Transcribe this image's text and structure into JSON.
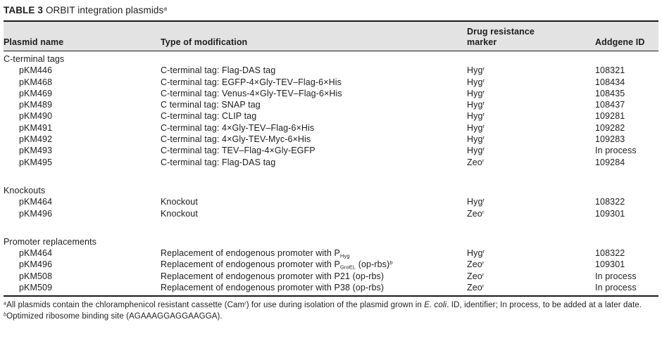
{
  "colors": {
    "header_bg": "#e3e3e3",
    "text": "#1d1d1d",
    "rule": "#1a1a1a"
  },
  "table": {
    "title_label": "TABLE 3",
    "title_text": "ORBIT integration plasmids",
    "title_note_ref": "a",
    "columns": [
      "Plasmid name",
      "Type of modification",
      "Drug resistance marker",
      "Addgene ID"
    ],
    "sections": [
      {
        "name": "C-terminal tags",
        "rows": [
          {
            "plasmid": "pKM446",
            "modification": [
              {
                "t": "C-terminal tag: Flag-DAS tag"
              }
            ],
            "marker": [
              {
                "t": "Hyg"
              },
              {
                "t": "r",
                "style": "sup"
              }
            ],
            "addgene": "108321"
          },
          {
            "plasmid": "pKM468",
            "modification": [
              {
                "t": "C-terminal tag: EGFP-4×Gly-TEV–Flag-6×His"
              }
            ],
            "marker": [
              {
                "t": "Hyg"
              },
              {
                "t": "r",
                "style": "sup"
              }
            ],
            "addgene": "108434"
          },
          {
            "plasmid": "pKM469",
            "modification": [
              {
                "t": "C-terminal tag: Venus-4×Gly-TEV–Flag-6×His"
              }
            ],
            "marker": [
              {
                "t": "Hyg"
              },
              {
                "t": "r",
                "style": "sup"
              }
            ],
            "addgene": "108435"
          },
          {
            "plasmid": "pKM489",
            "modification": [
              {
                "t": "C terminal tag: SNAP tag"
              }
            ],
            "marker": [
              {
                "t": "Hyg"
              },
              {
                "t": "r",
                "style": "sup"
              }
            ],
            "addgene": "108437"
          },
          {
            "plasmid": "pKM490",
            "modification": [
              {
                "t": "C-terminal tag: CLIP tag"
              }
            ],
            "marker": [
              {
                "t": "Hyg"
              },
              {
                "t": "r",
                "style": "sup"
              }
            ],
            "addgene": "109281"
          },
          {
            "plasmid": "pKM491",
            "modification": [
              {
                "t": "C-terminal tag: 4×Gly-TEV–Flag-6×His"
              }
            ],
            "marker": [
              {
                "t": "Hyg"
              },
              {
                "t": "r",
                "style": "sup"
              }
            ],
            "addgene": "109282"
          },
          {
            "plasmid": "pKM492",
            "modification": [
              {
                "t": "C-terminal tag: 4×Gly-TEV-Myc-6×His"
              }
            ],
            "marker": [
              {
                "t": "Hyg"
              },
              {
                "t": "r",
                "style": "sup"
              }
            ],
            "addgene": "109283"
          },
          {
            "plasmid": "pKM493",
            "modification": [
              {
                "t": "C-terminal tag: TEV–Flag-4×Gly-EGFP"
              }
            ],
            "marker": [
              {
                "t": "Hyg"
              },
              {
                "t": "r",
                "style": "sup"
              }
            ],
            "addgene": "In process"
          },
          {
            "plasmid": "pKM495",
            "modification": [
              {
                "t": "C-terminal tag: Flag-DAS tag"
              }
            ],
            "marker": [
              {
                "t": "Zeo"
              },
              {
                "t": "r",
                "style": "sup"
              }
            ],
            "addgene": "109284"
          }
        ]
      },
      {
        "name": "Knockouts",
        "rows": [
          {
            "plasmid": "pKM464",
            "modification": [
              {
                "t": "Knockout"
              }
            ],
            "marker": [
              {
                "t": "Hyg"
              },
              {
                "t": "r",
                "style": "sup"
              }
            ],
            "addgene": "108322"
          },
          {
            "plasmid": "pKM496",
            "modification": [
              {
                "t": "Knockout"
              }
            ],
            "marker": [
              {
                "t": "Zeo"
              },
              {
                "t": "r",
                "style": "sup"
              }
            ],
            "addgene": "109301"
          }
        ]
      },
      {
        "name": "Promoter replacements",
        "rows": [
          {
            "plasmid": "pKM464",
            "modification": [
              {
                "t": "Replacement of endogenous promoter with P"
              },
              {
                "t": "Hyg",
                "style": "sub"
              }
            ],
            "marker": [
              {
                "t": "Hyg"
              },
              {
                "t": "r",
                "style": "sup"
              }
            ],
            "addgene": "108322"
          },
          {
            "plasmid": "pKM496",
            "modification": [
              {
                "t": "Replacement of endogenous promoter with P"
              },
              {
                "t": "GroEL",
                "style": "sub"
              },
              {
                "t": " (op-rbs)"
              },
              {
                "t": "b",
                "style": "sup-italic"
              }
            ],
            "marker": [
              {
                "t": "Zeo"
              },
              {
                "t": "r",
                "style": "sup"
              }
            ],
            "addgene": "109301"
          },
          {
            "plasmid": "pKM508",
            "modification": [
              {
                "t": "Replacement of endogenous promoter with P21 (op-rbs)"
              }
            ],
            "marker": [
              {
                "t": "Zeo"
              },
              {
                "t": "r",
                "style": "sup"
              }
            ],
            "addgene": "In process"
          },
          {
            "plasmid": "pKM509",
            "modification": [
              {
                "t": "Replacement of endogenous promoter with P38 (op-rbs)"
              }
            ],
            "marker": [
              {
                "t": "Zeo"
              },
              {
                "t": "r",
                "style": "sup"
              }
            ],
            "addgene": "In process"
          }
        ]
      }
    ]
  },
  "footnotes": [
    {
      "ref": "a",
      "segments": [
        {
          "t": "All plasmids contain the chloramphenicol resistant cassette (Cam"
        },
        {
          "t": "r",
          "style": "sup"
        },
        {
          "t": ") for use during isolation of the plasmid grown in "
        },
        {
          "t": "E. coli",
          "style": "italic"
        },
        {
          "t": ". ID, identifier; In process, to be added at a later date."
        }
      ]
    },
    {
      "ref": "b",
      "segments": [
        {
          "t": "Optimized ribosome binding site (AGAAAGGAGGAAGGA)."
        }
      ]
    }
  ]
}
